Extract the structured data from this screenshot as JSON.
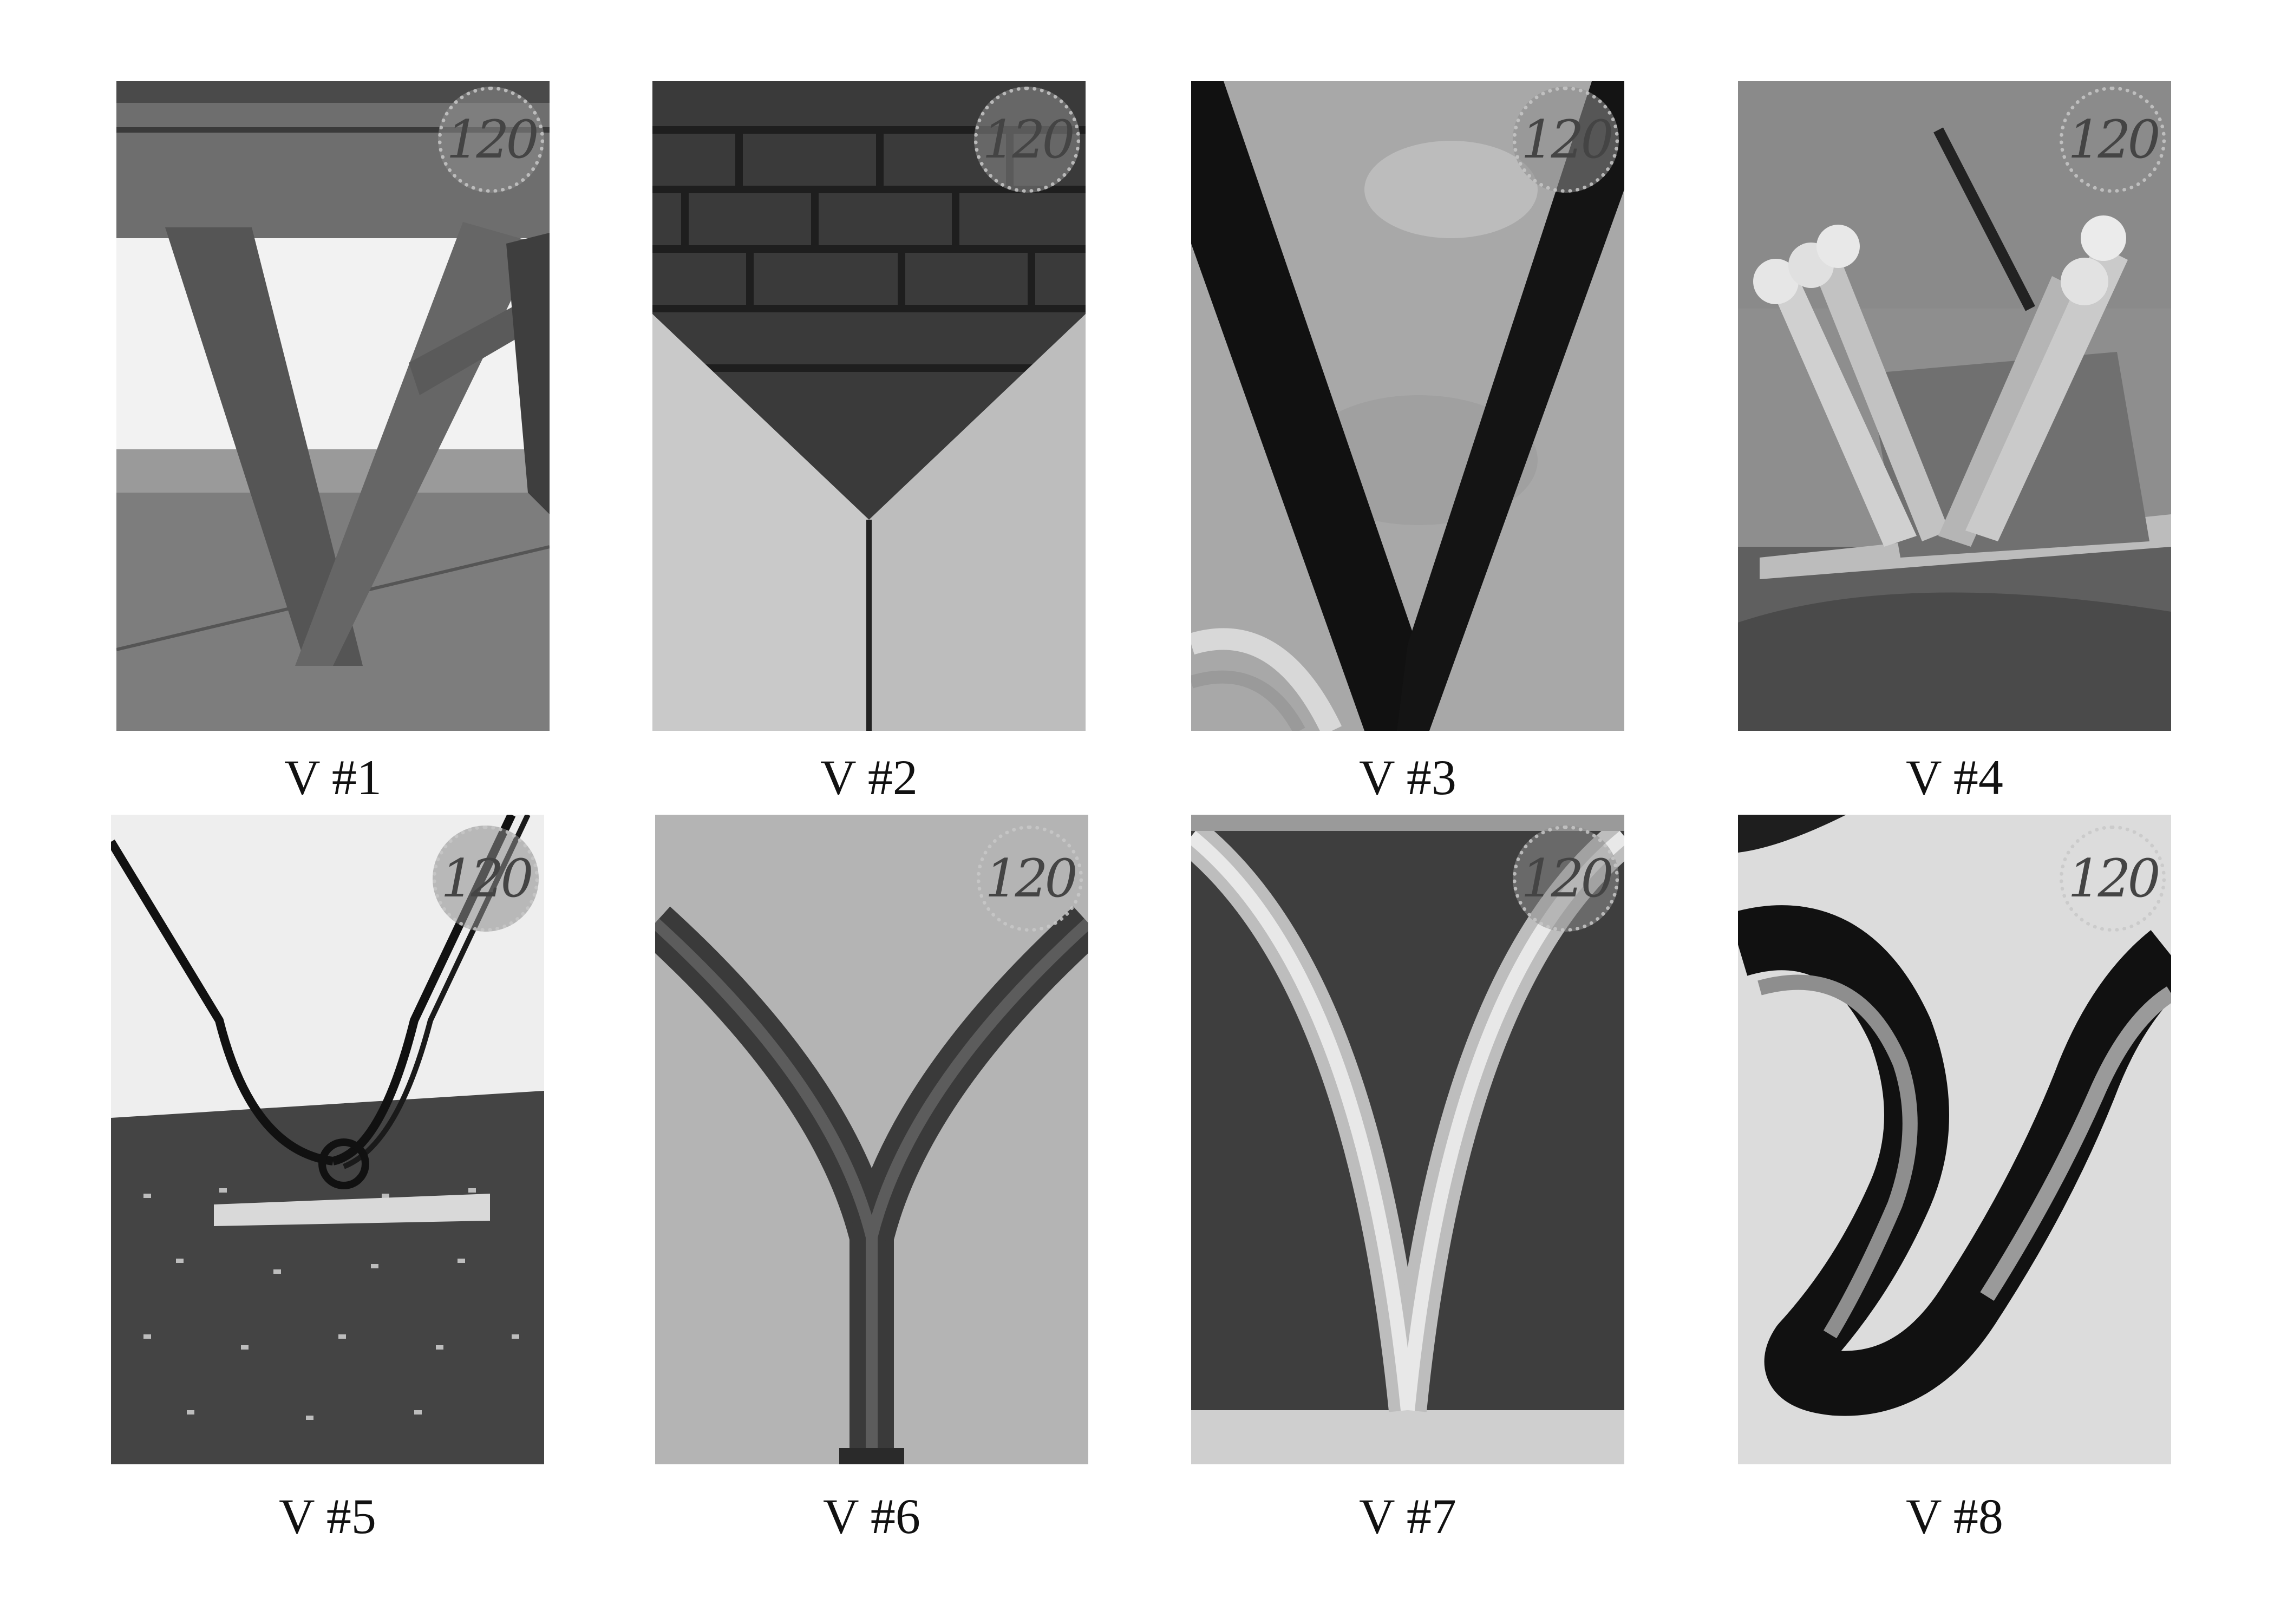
{
  "watermark": "120",
  "photos": [
    {
      "caption": "V #1"
    },
    {
      "caption": "V #2"
    },
    {
      "caption": "V #3"
    },
    {
      "caption": "V #4"
    },
    {
      "caption": "V #5"
    },
    {
      "caption": "V #6"
    },
    {
      "caption": "V #7"
    },
    {
      "caption": "V #8"
    }
  ]
}
